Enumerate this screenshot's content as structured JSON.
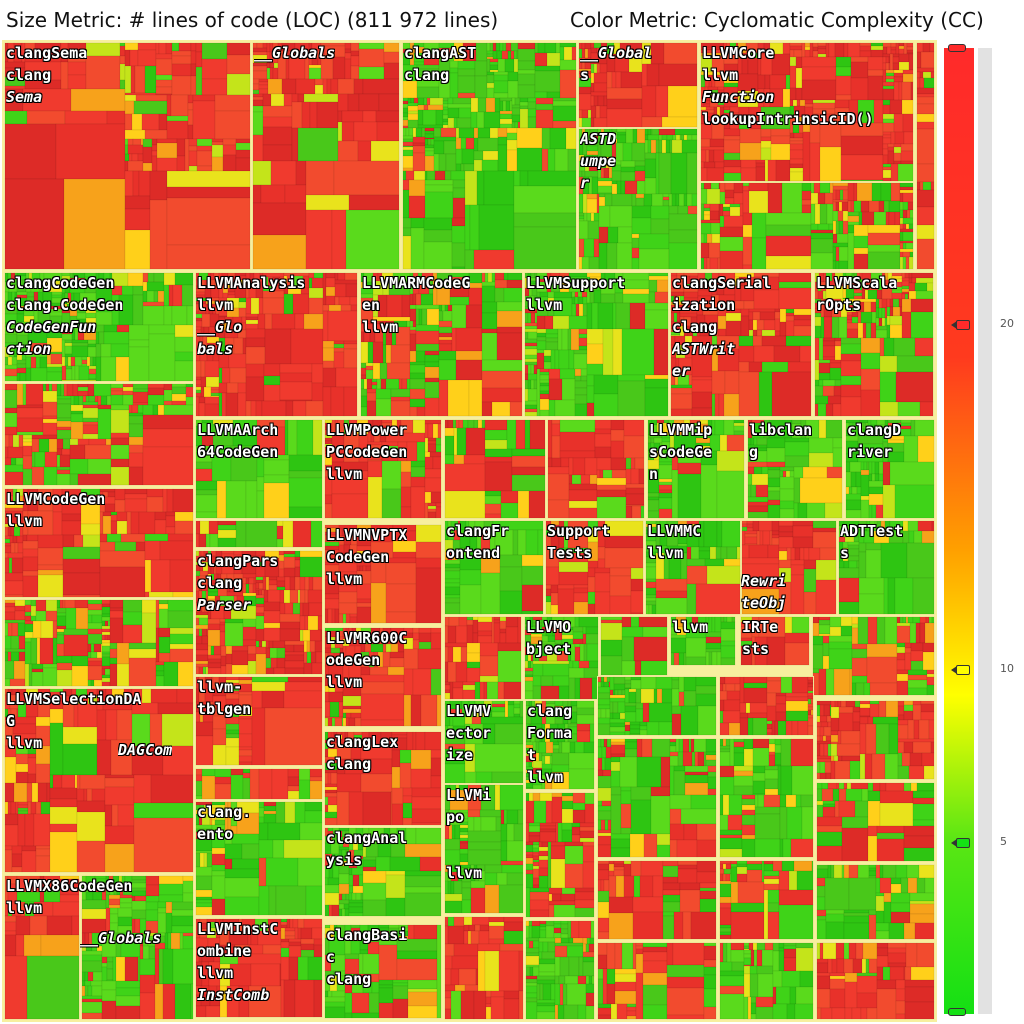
{
  "header": {
    "size_metric": "Size Metric: # lines of code (LOC) (811 972 lines)",
    "color_metric": "Color Metric: Cyclomatic Complexity (CC)"
  },
  "colors": {
    "background": "#f7ef9e",
    "low": "#14e014",
    "mid": "#ffff00",
    "high": "#ff2a2a"
  },
  "legend": {
    "min": 0,
    "max": 28,
    "ticks": [
      {
        "value": 20,
        "label": "20"
      },
      {
        "value": 10,
        "label": "10"
      },
      {
        "value": 5,
        "label": "5"
      }
    ]
  },
  "chart_data": {
    "type": "treemap",
    "size_metric": "# lines of code (LOC)",
    "total": "811 972 lines",
    "color_metric": "Cyclomatic Complexity (CC)",
    "nodes": [
      {
        "name": "clangSema",
        "lines": [
          "clangSema",
          "clang",
          "Sema"
        ]
      },
      {
        "name": "__Globals",
        "lines": [
          "__Globals"
        ]
      },
      {
        "name": "clangAST",
        "lines": [
          "clangAST",
          "clang"
        ]
      },
      {
        "name": "__Globals (2)",
        "lines": [
          "__Global",
          "s"
        ]
      },
      {
        "name": "ASTDumper",
        "lines": [
          "ASTD",
          "umpe",
          "r"
        ]
      },
      {
        "name": "LLVMCore",
        "lines": [
          "LLVMCore",
          "llvm",
          "Function",
          "lookupIntrinsicID()"
        ]
      },
      {
        "name": "clangCodeGen",
        "lines": [
          "clangCodeGen",
          "clang.CodeGen",
          "CodeGenFun",
          "ction"
        ]
      },
      {
        "name": "LLVMAnalysis",
        "lines": [
          "LLVMAnalysis",
          "llvm",
          "__Glo",
          "bals"
        ]
      },
      {
        "name": "LLVMARMCodeGen",
        "lines": [
          "LLVMARMCodeG",
          "en",
          "llvm"
        ]
      },
      {
        "name": "LLVMSupport",
        "lines": [
          "LLVMSupport",
          "llvm"
        ]
      },
      {
        "name": "clangSerialization",
        "lines": [
          "clangSerial",
          "ization",
          "clang",
          "ASTWrit",
          "er"
        ]
      },
      {
        "name": "LLVMScalarOpts",
        "lines": [
          "LLVMScala",
          "rOpts"
        ]
      },
      {
        "name": "LLVMAArch64CodeGen",
        "lines": [
          "LLVMAArch",
          "64CodeGen"
        ]
      },
      {
        "name": "LLVMPowerPCCodeGen",
        "lines": [
          "LLVMPower",
          "PCCodeGen",
          "llvm"
        ]
      },
      {
        "name": "LLVMMipsCodeGen",
        "lines": [
          "LLVMMip",
          "sCodeGe",
          "n"
        ]
      },
      {
        "name": "libclang",
        "lines": [
          "libclan",
          "g"
        ]
      },
      {
        "name": "clangDriver",
        "lines": [
          "clangD",
          "river"
        ]
      },
      {
        "name": "LLVMCodeGen",
        "lines": [
          "LLVMCodeGen",
          "llvm"
        ]
      },
      {
        "name": "LLVMNVPTXCodeGen",
        "lines": [
          "LLVMNVPTX",
          "CodeGen",
          "llvm"
        ]
      },
      {
        "name": "clangFrontend",
        "lines": [
          "clangFr",
          "ontend"
        ]
      },
      {
        "name": "SupportTests",
        "lines": [
          "Support",
          "Tests"
        ]
      },
      {
        "name": "LLVMMC",
        "lines": [
          "LLVMMC",
          "llvm",
          "Rewri",
          "teObj"
        ]
      },
      {
        "name": "ADTTests",
        "lines": [
          "ADTTest",
          "s"
        ]
      },
      {
        "name": "clangParse",
        "lines": [
          "clangPars",
          "clang",
          "Parser"
        ]
      },
      {
        "name": "LLVMR600CodeGen",
        "lines": [
          "LLVMR600C",
          "odeGen",
          "llvm"
        ]
      },
      {
        "name": "LLVMObject",
        "lines": [
          "LLVMO",
          "bject"
        ]
      },
      {
        "name": "llvm (object)",
        "lines": [
          "llvm"
        ]
      },
      {
        "name": "IRTests",
        "lines": [
          "IRTe",
          "sts"
        ]
      },
      {
        "name": "LLVMSelectionDAG",
        "lines": [
          "LLVMSelectionDA",
          "G",
          "llvm",
          "DAGCom"
        ]
      },
      {
        "name": "llvm-tblgen",
        "lines": [
          "llvm-",
          "tblgen"
        ]
      },
      {
        "name": "LLVMVectorize",
        "lines": [
          "LLVMV",
          "ector",
          "ize"
        ]
      },
      {
        "name": "clangFormat",
        "lines": [
          "clang",
          "Forma",
          "t",
          "llvm"
        ]
      },
      {
        "name": "clangLex",
        "lines": [
          "clangLex",
          "clang"
        ]
      },
      {
        "name": "LLVMipo",
        "lines": [
          "LLVMi",
          "po"
        ]
      },
      {
        "name": "clangEdit",
        "lines": [
          "clang.",
          "ento"
        ]
      },
      {
        "name": "clangAnalysis",
        "lines": [
          "clangAnal",
          "ysis"
        ]
      },
      {
        "name": "llvm (vectorize)",
        "lines": [
          "llvm"
        ]
      },
      {
        "name": "LLVMX86CodeGen",
        "lines": [
          "LLVMX86CodeGen",
          "llvm",
          "__Globals"
        ]
      },
      {
        "name": "LLVMInstCombine",
        "lines": [
          "LLVMInstC",
          "ombine",
          "llvm",
          "InstComb"
        ]
      },
      {
        "name": "clangBasic",
        "lines": [
          "clangBasi",
          "c",
          "clang"
        ]
      }
    ]
  }
}
